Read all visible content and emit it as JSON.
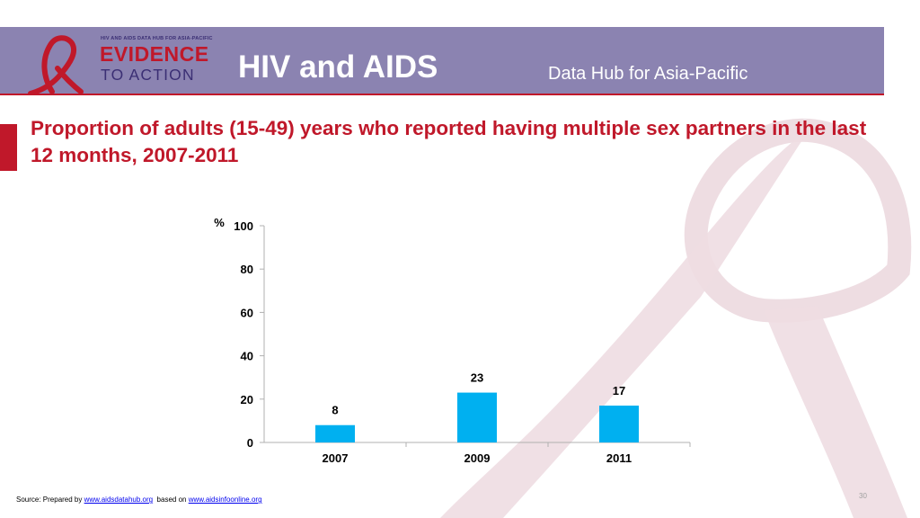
{
  "header": {
    "logo": {
      "small_text": "HIV AND AIDS DATA HUB FOR ASIA-PACIFIC",
      "line1": "EVIDENCE",
      "line2": "TO ACTION"
    },
    "title": "HIV and AIDS",
    "subtitle": "Data Hub for Asia-Pacific"
  },
  "slide_title": "Proportion of adults (15-49) years who reported having multiple sex partners in the last 12 months, 2007-2011",
  "colors": {
    "header": "#8b83b1",
    "accent": "#c0182a",
    "bar": "#00b0f0",
    "ribbon": "#e9d7dd"
  },
  "chart_data": {
    "type": "bar",
    "categories": [
      "2007",
      "2009",
      "2011"
    ],
    "values": [
      8,
      23,
      17
    ],
    "ylabel": "%",
    "ylim": [
      0,
      100
    ],
    "yticks": [
      0,
      20,
      40,
      60,
      80,
      100
    ],
    "data_labels": true,
    "grid": false,
    "legend": "none"
  },
  "footer": {
    "source_prefix": "Source: Prepared by ",
    "link1": "www.aidsdatahub.org",
    "source_middle": "  based on ",
    "link2": "www.aidsinfoonline.org",
    "page_number": "30"
  }
}
